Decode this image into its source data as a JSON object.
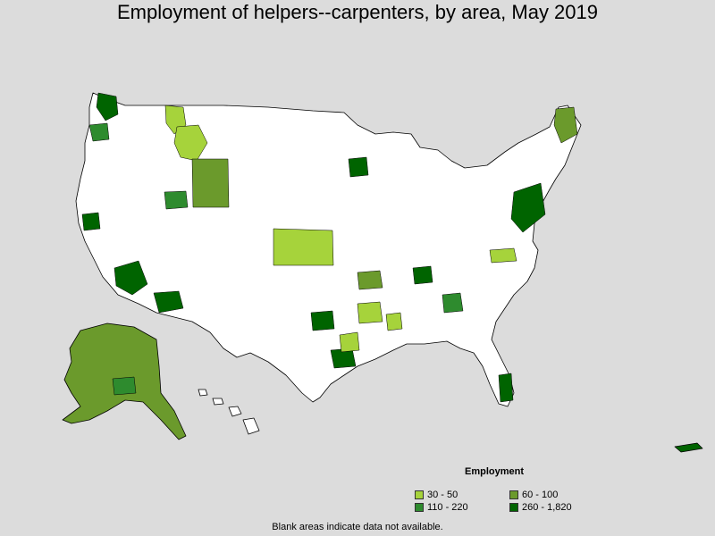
{
  "title": "Employment of helpers--carpenters, by area, May 2019",
  "legend": {
    "title": "Employment",
    "items": [
      {
        "label": "30 - 50",
        "color": "#a6d33b"
      },
      {
        "label": "60 - 100",
        "color": "#6b9a2c"
      },
      {
        "label": "110 - 220",
        "color": "#2e8b2e"
      },
      {
        "label": "260 - 1,820",
        "color": "#006400"
      }
    ]
  },
  "note": "Blank areas indicate data not available.",
  "colors": {
    "background": "#dcdcdc",
    "land_blank": "#ffffff",
    "border": "#000000"
  }
}
